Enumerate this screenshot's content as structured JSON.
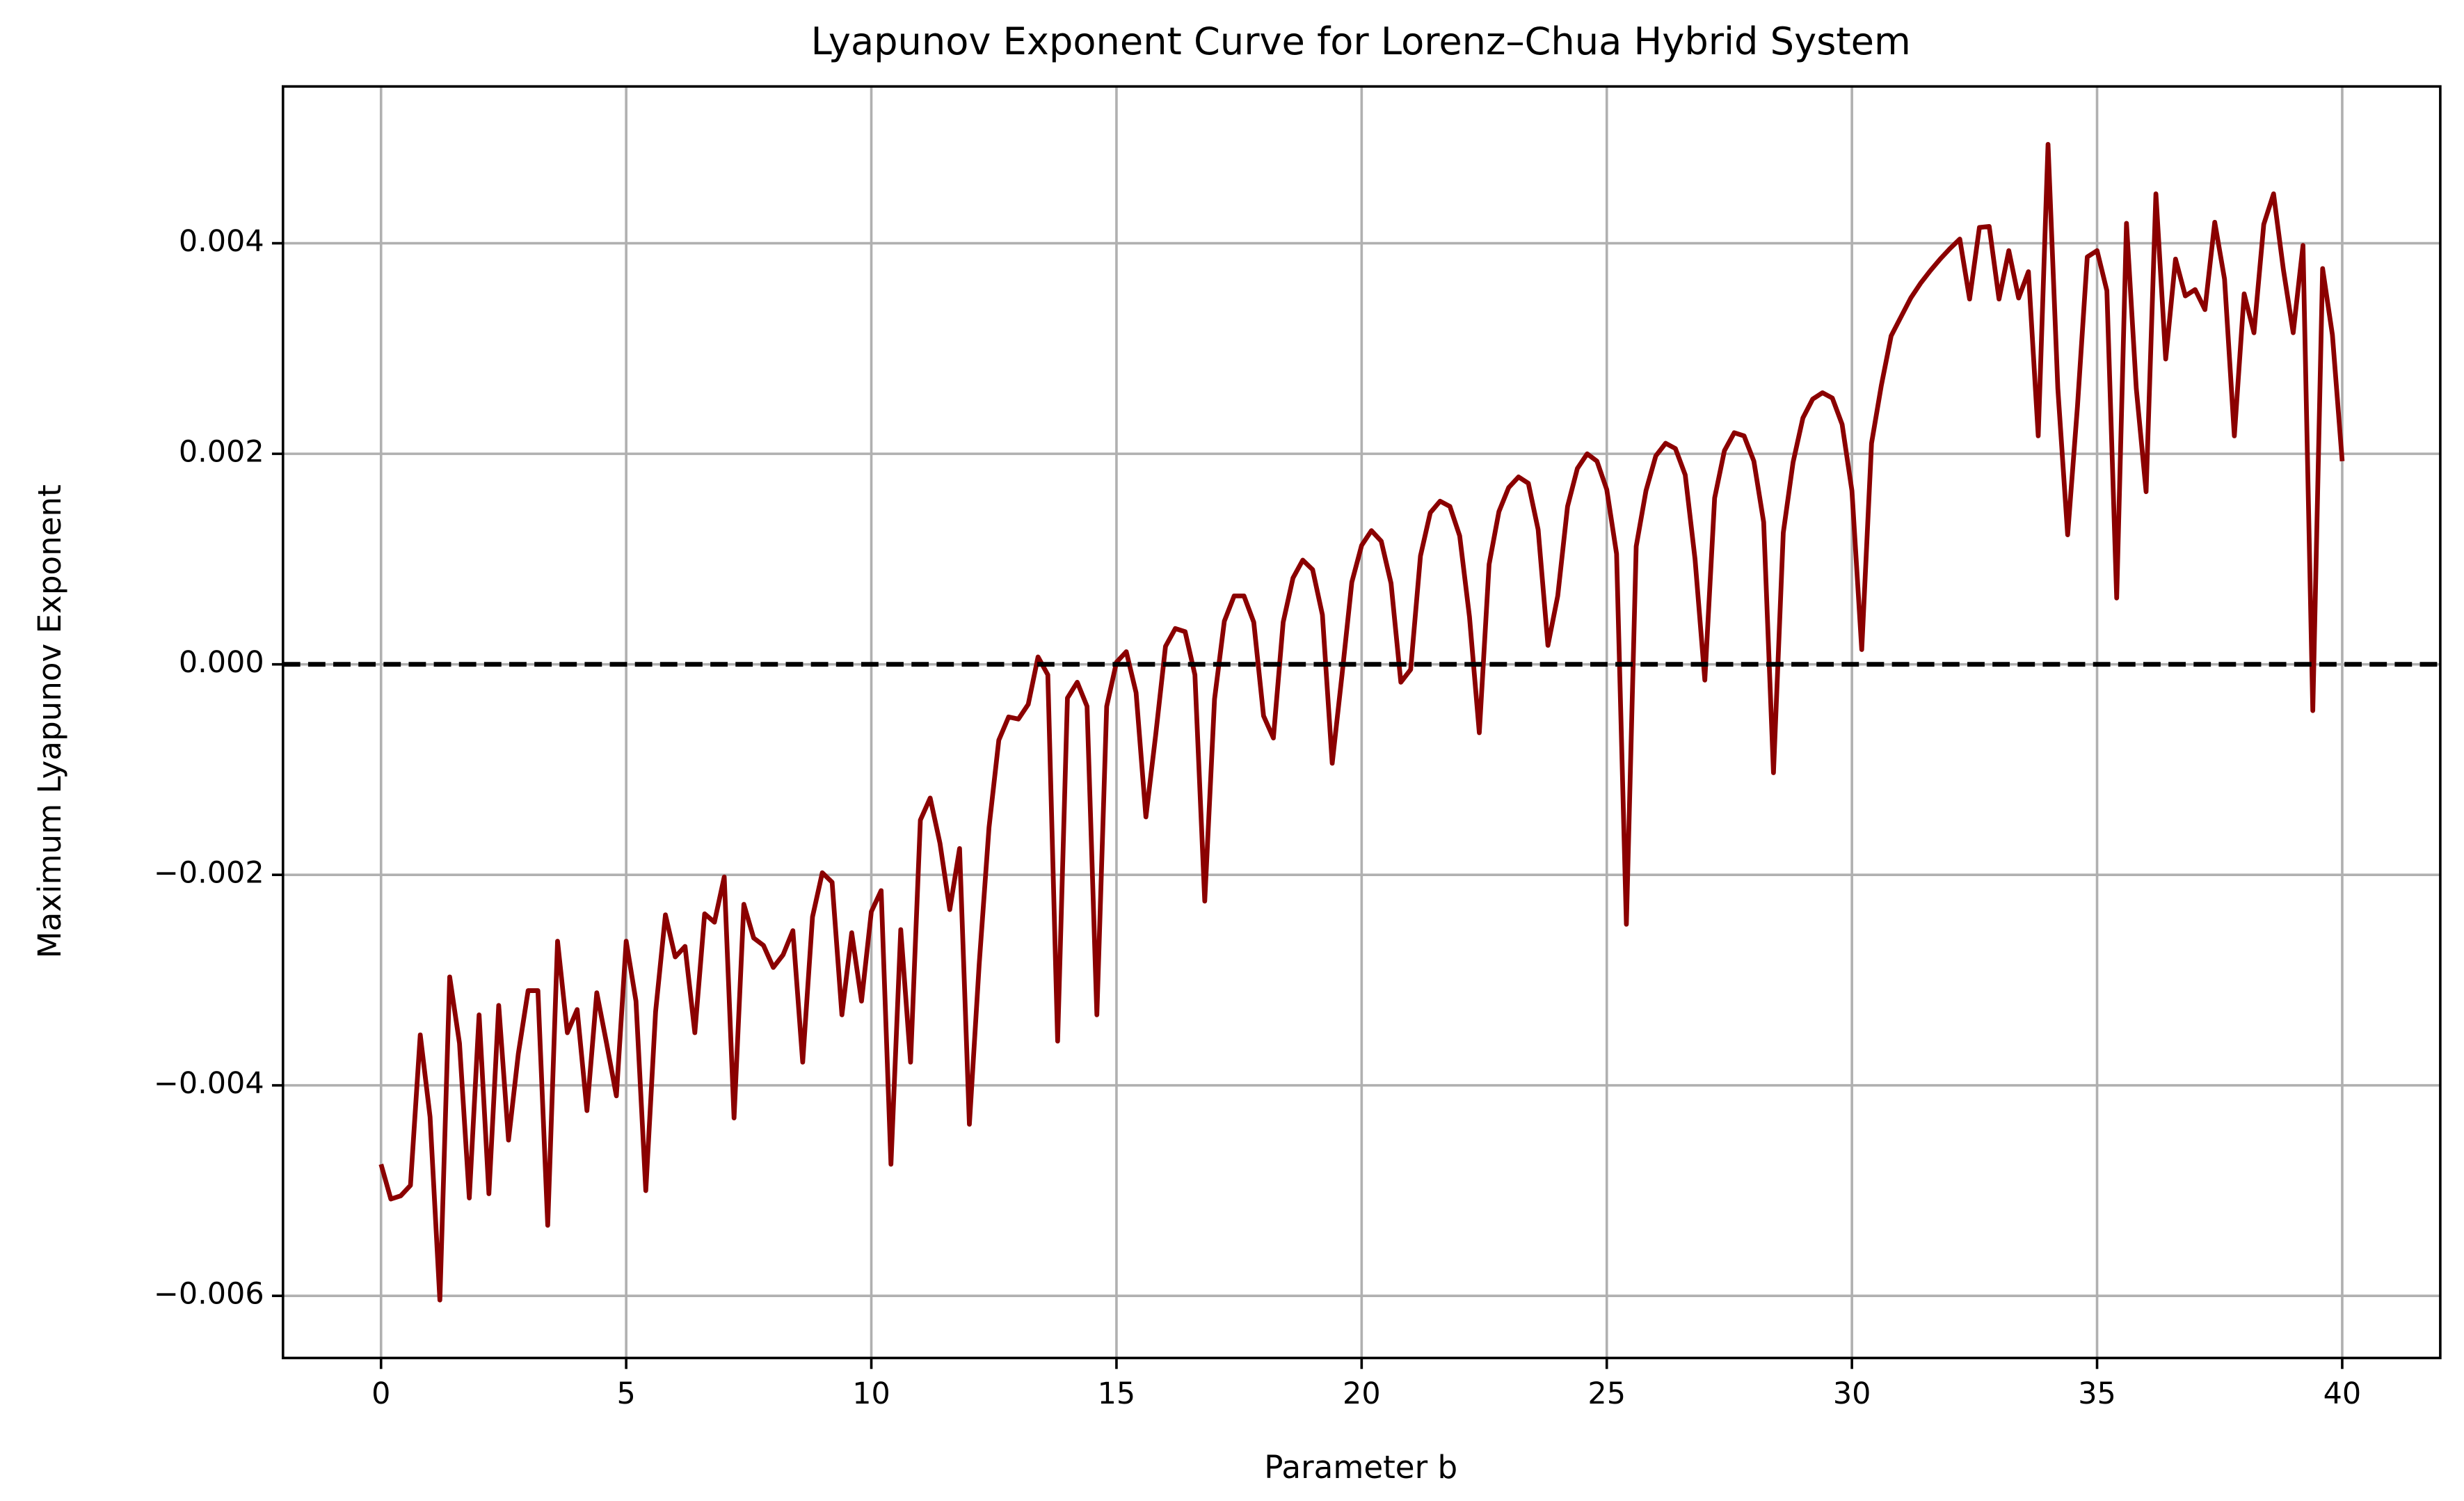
{
  "chart_data": {
    "type": "line",
    "title": "Lyapunov Exponent Curve for Lorenz–Chua Hybrid System",
    "xlabel": "Parameter b",
    "ylabel": "Maximum Lyapunov Exponent",
    "color": "#8b0000",
    "grid": true,
    "reference_line": {
      "y": 0,
      "style": "dashed",
      "color": "#000000"
    },
    "xlim": [
      -2,
      42
    ],
    "ylim": [
      -0.00659,
      0.00549
    ],
    "xticks": [
      0,
      5,
      10,
      15,
      20,
      25,
      30,
      35,
      40
    ],
    "yticks": [
      {
        "value": -0.006,
        "label": "−0.006"
      },
      {
        "value": -0.004,
        "label": "−0.004"
      },
      {
        "value": -0.002,
        "label": "−0.002"
      },
      {
        "value": 0,
        "label": "0.000"
      },
      0.002,
      0.004
    ],
    "x": [
      0,
      0.2,
      0.4,
      0.6,
      0.8,
      1,
      1.2,
      1.4,
      1.6,
      1.8,
      2,
      2.2,
      2.4,
      2.6,
      2.8,
      3,
      3.2,
      3.4,
      3.6,
      3.8,
      4,
      4.2,
      4.4,
      4.6,
      4.8,
      5,
      5.2,
      5.4,
      5.6,
      5.8,
      6,
      6.2,
      6.4,
      6.6,
      6.8,
      7,
      7.2,
      7.4,
      7.6,
      7.8,
      8,
      8.2,
      8.4,
      8.6,
      8.8,
      9,
      9.2,
      9.4,
      9.6,
      9.8,
      10,
      10.2,
      10.4,
      10.6,
      10.8,
      11,
      11.2,
      11.4,
      11.6,
      11.8,
      12,
      12.2,
      12.4,
      12.6,
      12.8,
      13,
      13.2,
      13.4,
      13.6,
      13.8,
      14,
      14.2,
      14.4,
      14.6,
      14.8,
      15,
      15.2,
      15.4,
      15.6,
      15.8,
      16,
      16.2,
      16.4,
      16.6,
      16.8,
      17,
      17.2,
      17.4,
      17.6,
      17.8,
      18,
      18.2,
      18.4,
      18.6,
      18.8,
      19,
      19.2,
      19.4,
      19.6,
      19.8,
      20,
      20.2,
      20.4,
      20.6,
      20.8,
      21,
      21.2,
      21.4,
      21.6,
      21.8,
      22,
      22.2,
      22.4,
      22.6,
      22.8,
      23,
      23.2,
      23.4,
      23.6,
      23.8,
      24,
      24.2,
      24.4,
      24.6,
      24.8,
      25,
      25.2,
      25.4,
      25.6,
      25.8,
      26,
      26.2,
      26.4,
      26.6,
      26.8,
      27,
      27.2,
      27.4,
      27.6,
      27.8,
      28,
      28.2,
      28.4,
      28.6,
      28.8,
      29,
      29.2,
      29.4,
      29.6,
      29.8,
      30,
      30.2,
      30.4,
      30.6,
      30.8,
      31,
      31.2,
      31.4,
      31.6,
      31.8,
      32,
      32.2,
      32.4,
      32.6,
      32.8,
      33,
      33.2,
      33.4,
      33.6,
      33.8,
      34,
      34.2,
      34.4,
      34.6,
      34.8,
      35,
      35.2,
      35.4,
      35.6,
      35.8,
      36,
      36.2,
      36.4,
      36.6,
      36.8,
      37,
      37.2,
      37.4,
      37.6,
      37.8,
      38,
      38.2,
      38.4,
      38.6,
      38.8,
      39,
      39.2,
      39.4,
      39.6,
      39.8,
      40
    ],
    "values": [
      -0.00475,
      -0.00508,
      -0.00505,
      -0.00495,
      -0.00352,
      -0.0043,
      -0.00604,
      -0.00297,
      -0.0036,
      -0.00507,
      -0.00333,
      -0.00503,
      -0.00324,
      -0.00452,
      -0.0037,
      -0.0031,
      -0.0031,
      -0.00533,
      -0.00263,
      -0.0035,
      -0.00328,
      -0.00424,
      -0.00312,
      -0.0036,
      -0.0041,
      -0.00263,
      -0.0032,
      -0.005,
      -0.0033,
      -0.00238,
      -0.00278,
      -0.00268,
      -0.0035,
      -0.00237,
      -0.00245,
      -0.00202,
      -0.00431,
      -0.00228,
      -0.0026,
      -0.00267,
      -0.00288,
      -0.00276,
      -0.00253,
      -0.00378,
      -0.0024,
      -0.00198,
      -0.00207,
      -0.00333,
      -0.00255,
      -0.0032,
      -0.00235,
      -0.00215,
      -0.00475,
      -0.00252,
      -0.00378,
      -0.00148,
      -0.00127,
      -0.0017,
      -0.00233,
      -0.00175,
      -0.00437,
      -0.00285,
      -0.00155,
      -0.00072,
      -0.0005,
      -0.00052,
      -0.00038,
      7e-05,
      -0.0001,
      -0.00358,
      -0.00032,
      -0.00017,
      -0.0004,
      -0.00333,
      -0.0004,
      2e-05,
      0.00012,
      -0.00027,
      -0.00145,
      -0.00067,
      0.00017,
      0.00034,
      0.00031,
      -0.0001,
      -0.00225,
      -0.00033,
      0.00041,
      0.00065,
      0.00065,
      0.0004,
      -0.00049,
      -0.0007,
      0.0004,
      0.00082,
      0.00099,
      0.0009,
      0.00047,
      -0.00094,
      -0.0001,
      0.00078,
      0.00113,
      0.00127,
      0.00117,
      0.00077,
      -0.00017,
      -5e-05,
      0.00103,
      0.00144,
      0.00155,
      0.0015,
      0.00122,
      0.00045,
      -0.00065,
      0.00095,
      0.00145,
      0.00168,
      0.00178,
      0.00172,
      0.00128,
      0.00018,
      0.00065,
      0.0015,
      0.00186,
      0.002,
      0.00193,
      0.00166,
      0.00105,
      -0.00247,
      0.00112,
      0.00165,
      0.00198,
      0.0021,
      0.00205,
      0.0018,
      0.001,
      -0.00015,
      0.00158,
      0.00203,
      0.0022,
      0.00217,
      0.00193,
      0.00135,
      -0.00103,
      0.00125,
      0.00192,
      0.00234,
      0.00252,
      0.00258,
      0.00253,
      0.00228,
      0.00165,
      0.00014,
      0.0021,
      0.00265,
      0.00312,
      0.0033,
      0.00348,
      0.00362,
      0.00374,
      0.00385,
      0.00395,
      0.00404,
      0.00347,
      0.00415,
      0.00416,
      0.00347,
      0.00393,
      0.00348,
      0.00373,
      0.00217,
      0.00494,
      0.00262,
      0.00123,
      0.00245,
      0.00387,
      0.00393,
      0.00355,
      0.00063,
      0.00419,
      0.00262,
      0.00164,
      0.00447,
      0.0029,
      0.00385,
      0.0035,
      0.00356,
      0.00337,
      0.0042,
      0.00366,
      0.00217,
      0.00352,
      0.00315,
      0.00418,
      0.00447,
      0.00375,
      0.00315,
      0.00398,
      -0.00044,
      0.00376,
      0.00313,
      0.00193
    ]
  }
}
